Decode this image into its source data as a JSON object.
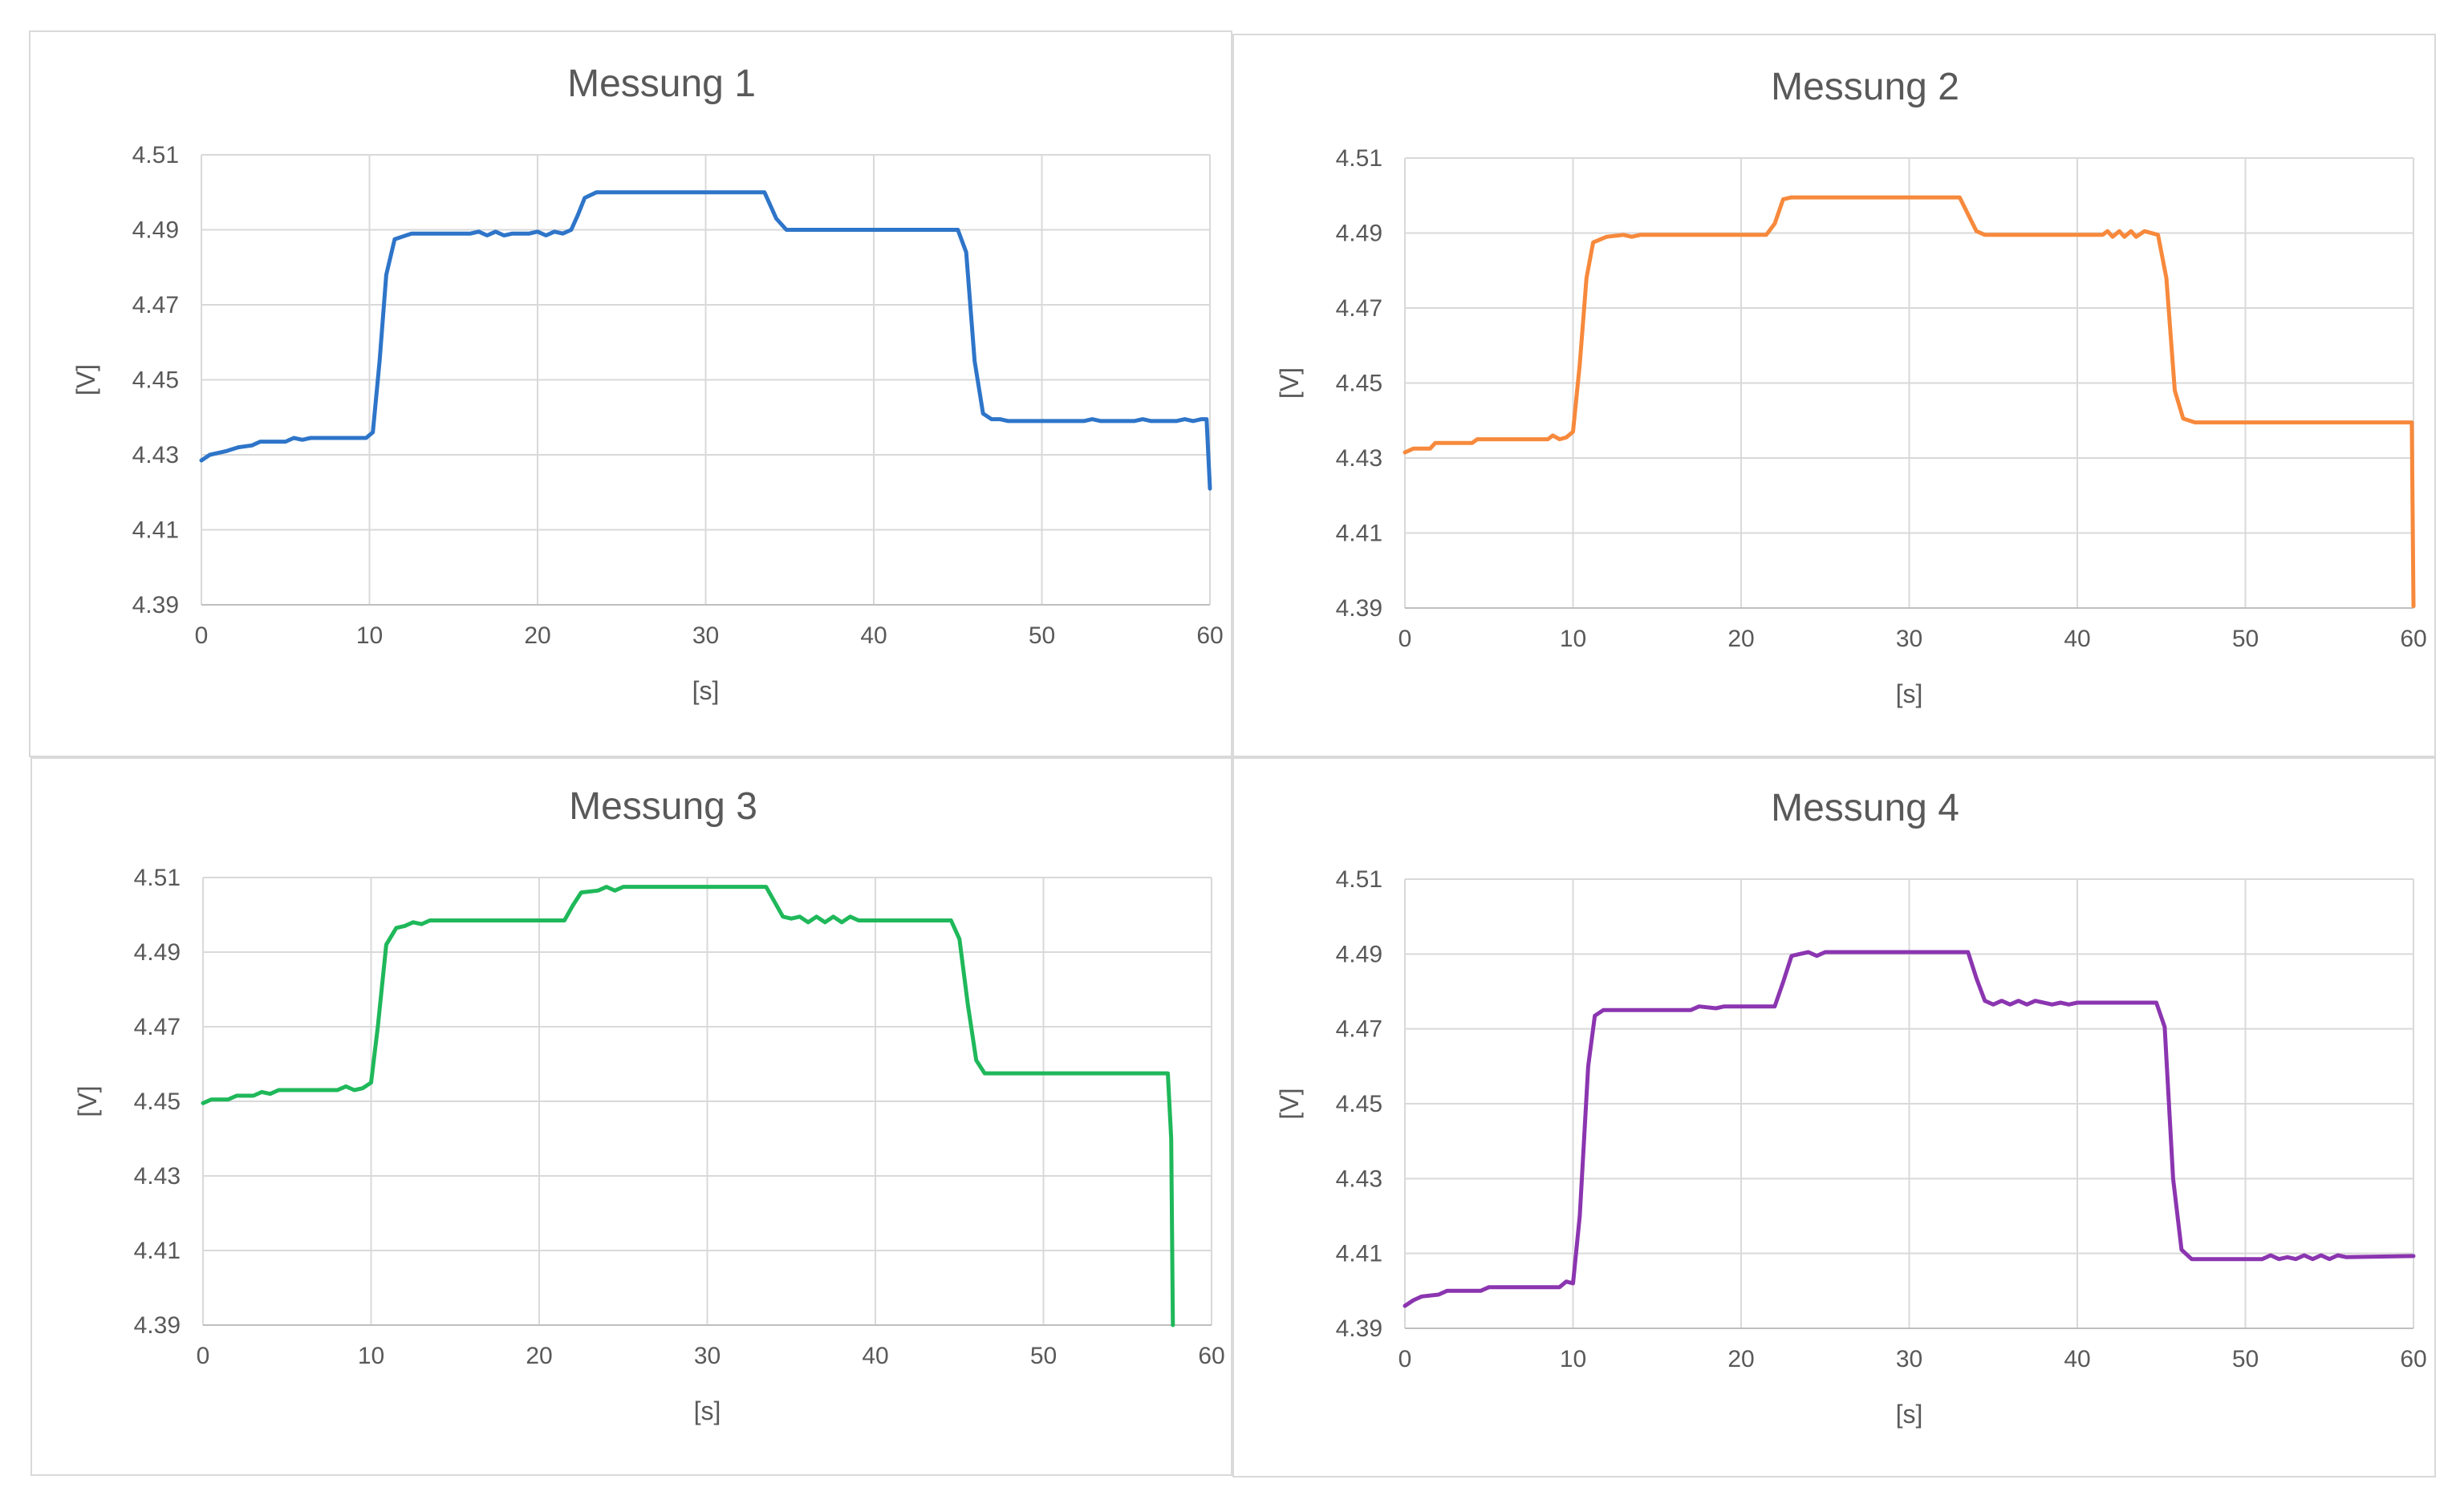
{
  "charts_meta": {
    "line_width": 5
  },
  "chart_data": [
    {
      "type": "line",
      "title": "Messung 1",
      "xlabel": "[s]",
      "ylabel": "[V]",
      "xlim": [
        0,
        60
      ],
      "ylim": [
        4.39,
        4.51
      ],
      "x_ticks": [
        "0",
        "10",
        "20",
        "30",
        "40",
        "50",
        "60"
      ],
      "y_ticks": [
        "4.51",
        "4.49",
        "4.47",
        "4.45",
        "4.43",
        "4.41",
        "4.39"
      ],
      "grid": true,
      "color": "#2e75c9",
      "points": [
        [
          0,
          4.4285
        ],
        [
          0.5,
          4.43
        ],
        [
          1.5,
          4.431
        ],
        [
          2.2,
          4.432
        ],
        [
          3,
          4.4325
        ],
        [
          3.5,
          4.4335
        ],
        [
          5,
          4.4335
        ],
        [
          5.5,
          4.4345
        ],
        [
          6,
          4.434
        ],
        [
          6.5,
          4.4345
        ],
        [
          7,
          4.4345
        ],
        [
          9.8,
          4.4345
        ],
        [
          10.2,
          4.436
        ],
        [
          10.6,
          4.455
        ],
        [
          11,
          4.478
        ],
        [
          11.5,
          4.4875
        ],
        [
          12.5,
          4.489
        ],
        [
          16,
          4.489
        ],
        [
          16.5,
          4.4895
        ],
        [
          17,
          4.4885
        ],
        [
          17.5,
          4.4895
        ],
        [
          18,
          4.4885
        ],
        [
          18.5,
          4.489
        ],
        [
          19.5,
          4.489
        ],
        [
          20,
          4.4895
        ],
        [
          20.5,
          4.4885
        ],
        [
          21,
          4.4895
        ],
        [
          21.5,
          4.489
        ],
        [
          22,
          4.49
        ],
        [
          22.4,
          4.494
        ],
        [
          22.8,
          4.4985
        ],
        [
          23.5,
          4.5
        ],
        [
          33.5,
          4.5
        ],
        [
          34.2,
          4.493
        ],
        [
          34.8,
          4.49
        ],
        [
          45,
          4.49
        ],
        [
          45.5,
          4.484
        ],
        [
          46,
          4.455
        ],
        [
          46.5,
          4.441
        ],
        [
          47,
          4.4395
        ],
        [
          47.5,
          4.4395
        ],
        [
          48,
          4.439
        ],
        [
          52.5,
          4.439
        ],
        [
          53,
          4.4395
        ],
        [
          53.5,
          4.439
        ],
        [
          55.5,
          4.439
        ],
        [
          56,
          4.4395
        ],
        [
          56.5,
          4.439
        ],
        [
          58,
          4.439
        ],
        [
          58.5,
          4.4395
        ],
        [
          59,
          4.439
        ],
        [
          59.5,
          4.4395
        ],
        [
          59.8,
          4.4395
        ],
        [
          60,
          4.421
        ]
      ]
    },
    {
      "type": "line",
      "title": "Messung 2",
      "xlabel": "[s]",
      "ylabel": "[V]",
      "xlim": [
        0,
        60
      ],
      "ylim": [
        4.39,
        4.51
      ],
      "x_ticks": [
        "0",
        "10",
        "20",
        "30",
        "40",
        "50",
        "60"
      ],
      "y_ticks": [
        "4.51",
        "4.49",
        "4.47",
        "4.45",
        "4.43",
        "4.41",
        "4.39"
      ],
      "grid": true,
      "color": "#f7893c",
      "points": [
        [
          0,
          4.4315
        ],
        [
          0.5,
          4.4325
        ],
        [
          1.5,
          4.4325
        ],
        [
          1.8,
          4.434
        ],
        [
          4,
          4.434
        ],
        [
          4.3,
          4.435
        ],
        [
          8.5,
          4.435
        ],
        [
          8.8,
          4.436
        ],
        [
          9.2,
          4.435
        ],
        [
          9.6,
          4.4355
        ],
        [
          10,
          4.437
        ],
        [
          10.4,
          4.455
        ],
        [
          10.8,
          4.478
        ],
        [
          11.2,
          4.4875
        ],
        [
          12,
          4.489
        ],
        [
          13,
          4.4895
        ],
        [
          13.5,
          4.489
        ],
        [
          14,
          4.4895
        ],
        [
          14.5,
          4.4895
        ],
        [
          21.5,
          4.4895
        ],
        [
          22,
          4.4925
        ],
        [
          22.5,
          4.499
        ],
        [
          23,
          4.4995
        ],
        [
          33,
          4.4995
        ],
        [
          33.5,
          4.495
        ],
        [
          34,
          4.4905
        ],
        [
          34.5,
          4.4895
        ],
        [
          41.5,
          4.4895
        ],
        [
          41.8,
          4.4905
        ],
        [
          42.1,
          4.489
        ],
        [
          42.5,
          4.4905
        ],
        [
          42.8,
          4.489
        ],
        [
          43.2,
          4.4905
        ],
        [
          43.5,
          4.489
        ],
        [
          44,
          4.4905
        ],
        [
          44.8,
          4.4895
        ],
        [
          45.3,
          4.478
        ],
        [
          45.8,
          4.448
        ],
        [
          46.3,
          4.4405
        ],
        [
          47,
          4.4395
        ],
        [
          59.6,
          4.4395
        ],
        [
          59.9,
          4.4395
        ],
        [
          60,
          4.3905
        ]
      ]
    },
    {
      "type": "line",
      "title": "Messung 3",
      "xlabel": "[s]",
      "ylabel": "[V]",
      "xlim": [
        0,
        60
      ],
      "ylim": [
        4.39,
        4.51
      ],
      "x_ticks": [
        "0",
        "10",
        "20",
        "30",
        "40",
        "50",
        "60"
      ],
      "y_ticks": [
        "4.51",
        "4.49",
        "4.47",
        "4.45",
        "4.43",
        "4.41",
        "4.39"
      ],
      "grid": true,
      "color": "#1fb85a",
      "points": [
        [
          0,
          4.4495
        ],
        [
          0.5,
          4.4505
        ],
        [
          1.5,
          4.4505
        ],
        [
          2,
          4.4515
        ],
        [
          3,
          4.4515
        ],
        [
          3.5,
          4.4525
        ],
        [
          4,
          4.452
        ],
        [
          4.5,
          4.453
        ],
        [
          8,
          4.453
        ],
        [
          8.5,
          4.454
        ],
        [
          9,
          4.453
        ],
        [
          9.5,
          4.4535
        ],
        [
          10,
          4.455
        ],
        [
          10.4,
          4.47
        ],
        [
          10.9,
          4.492
        ],
        [
          11.5,
          4.4965
        ],
        [
          12,
          4.497
        ],
        [
          12.5,
          4.498
        ],
        [
          13,
          4.4975
        ],
        [
          13.5,
          4.4985
        ],
        [
          21.5,
          4.4985
        ],
        [
          22,
          4.5025
        ],
        [
          22.5,
          4.506
        ],
        [
          23.5,
          4.5065
        ],
        [
          24,
          4.5075
        ],
        [
          24.5,
          4.5065
        ],
        [
          25,
          4.5075
        ],
        [
          33.5,
          4.5075
        ],
        [
          34,
          4.5035
        ],
        [
          34.5,
          4.4995
        ],
        [
          35,
          4.499
        ],
        [
          35.5,
          4.4995
        ],
        [
          36,
          4.498
        ],
        [
          36.5,
          4.4995
        ],
        [
          37,
          4.498
        ],
        [
          37.5,
          4.4995
        ],
        [
          38,
          4.498
        ],
        [
          38.5,
          4.4995
        ],
        [
          39,
          4.4985
        ],
        [
          44.5,
          4.4985
        ],
        [
          45,
          4.4935
        ],
        [
          45.5,
          4.476
        ],
        [
          46,
          4.461
        ],
        [
          46.5,
          4.4575
        ],
        [
          57.4,
          4.4575
        ],
        [
          57.6,
          4.44
        ],
        [
          57.7,
          4.39
        ]
      ]
    },
    {
      "type": "line",
      "title": "Messung 4",
      "xlabel": "[s]",
      "ylabel": "[V]",
      "xlim": [
        0,
        60
      ],
      "ylim": [
        4.39,
        4.51
      ],
      "x_ticks": [
        "0",
        "10",
        "20",
        "30",
        "40",
        "50",
        "60"
      ],
      "y_ticks": [
        "4.51",
        "4.49",
        "4.47",
        "4.45",
        "4.43",
        "4.41",
        "4.39"
      ],
      "grid": true,
      "color": "#8b35b0",
      "points": [
        [
          0,
          4.396
        ],
        [
          0.5,
          4.3975
        ],
        [
          1,
          4.3985
        ],
        [
          2,
          4.399
        ],
        [
          2.5,
          4.4
        ],
        [
          4.5,
          4.4
        ],
        [
          5,
          4.401
        ],
        [
          9.2,
          4.401
        ],
        [
          9.6,
          4.4025
        ],
        [
          10,
          4.402
        ],
        [
          10.4,
          4.42
        ],
        [
          10.9,
          4.46
        ],
        [
          11.3,
          4.4735
        ],
        [
          11.8,
          4.475
        ],
        [
          17,
          4.475
        ],
        [
          17.5,
          4.476
        ],
        [
          18.5,
          4.4755
        ],
        [
          19,
          4.476
        ],
        [
          22,
          4.476
        ],
        [
          22.5,
          4.4825
        ],
        [
          23,
          4.4895
        ],
        [
          23.5,
          4.49
        ],
        [
          24,
          4.4905
        ],
        [
          24.5,
          4.4895
        ],
        [
          25,
          4.4905
        ],
        [
          33.5,
          4.4905
        ],
        [
          34,
          4.4835
        ],
        [
          34.5,
          4.4775
        ],
        [
          35,
          4.4765
        ],
        [
          35.5,
          4.4775
        ],
        [
          36,
          4.4765
        ],
        [
          36.5,
          4.4775
        ],
        [
          37,
          4.4765
        ],
        [
          37.5,
          4.4775
        ],
        [
          38.5,
          4.4765
        ],
        [
          39,
          4.477
        ],
        [
          39.5,
          4.4765
        ],
        [
          40,
          4.477
        ],
        [
          44.7,
          4.477
        ],
        [
          45.2,
          4.4705
        ],
        [
          45.7,
          4.43
        ],
        [
          46.2,
          4.411
        ],
        [
          46.8,
          4.4085
        ],
        [
          51,
          4.4085
        ],
        [
          51.5,
          4.4095
        ],
        [
          52,
          4.4085
        ],
        [
          52.5,
          4.409
        ],
        [
          53,
          4.4085
        ],
        [
          53.5,
          4.4095
        ],
        [
          54,
          4.4085
        ],
        [
          54.5,
          4.4095
        ],
        [
          55,
          4.4085
        ],
        [
          55.5,
          4.4095
        ],
        [
          56,
          4.409
        ],
        [
          60,
          4.4093
        ]
      ]
    }
  ]
}
